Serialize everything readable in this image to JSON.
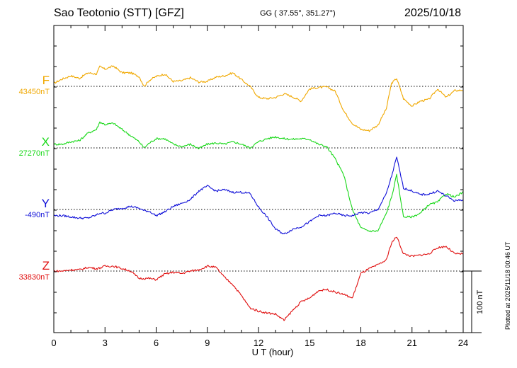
{
  "header": {
    "station": "Sao Teotonio (STT)  [GFZ]",
    "coords": "GG ( 37.55°, 351.27°)",
    "date": "2025/10/18"
  },
  "plotted_note": "Plotted at 2025/11/18 00:46 UT",
  "scale_label": "100 nT",
  "chart_data": {
    "type": "line",
    "xlabel": "U T (hour)",
    "xlim": [
      0,
      24
    ],
    "xticks": [
      0,
      3,
      6,
      9,
      12,
      15,
      18,
      21,
      24
    ],
    "nt_per_division": 100,
    "colors": {
      "F": "#f0a800",
      "X": "#18d818",
      "Y": "#1010d8",
      "Z": "#e01010"
    },
    "series": [
      {
        "name": "F",
        "baseline_label": "43450nT",
        "color": "#f0a800",
        "baseline": 43450,
        "x": [
          0,
          0.5,
          1,
          1.5,
          2,
          2.5,
          2.7,
          3,
          3.5,
          4,
          4.5,
          5,
          5.3,
          5.6,
          6,
          6.5,
          7,
          7.5,
          8,
          8.5,
          9,
          9.5,
          10,
          10.5,
          11,
          11.5,
          12,
          12.5,
          13,
          13.5,
          14,
          14.5,
          15,
          15.5,
          16,
          16.5,
          17,
          17.5,
          18,
          18.5,
          19,
          19.5,
          19.8,
          20.1,
          20.5,
          21,
          21.5,
          22,
          22.5,
          23,
          23.5,
          24
        ],
        "y": [
          43455,
          43462,
          43467,
          43463,
          43472,
          43470,
          43482,
          43478,
          43483,
          43472,
          43472,
          43466,
          43450,
          43460,
          43466,
          43470,
          43458,
          43459,
          43464,
          43457,
          43458,
          43465,
          43467,
          43472,
          43461,
          43450,
          43432,
          43430,
          43432,
          43438,
          43433,
          43426,
          43446,
          43448,
          43449,
          43442,
          43410,
          43390,
          43380,
          43378,
          43387,
          43414,
          43455,
          43463,
          43430,
          43418,
          43426,
          43429,
          43446,
          43432,
          43443,
          43444
        ]
      },
      {
        "name": "X",
        "baseline_label": "27270nT",
        "color": "#18d818",
        "baseline": 27270,
        "x": [
          0,
          0.5,
          1,
          1.5,
          2,
          2.5,
          2.7,
          3,
          3.5,
          4,
          4.5,
          5,
          5.3,
          5.6,
          6,
          6.5,
          7,
          7.5,
          8,
          8.5,
          9,
          9.5,
          10,
          10.5,
          11,
          11.5,
          12,
          12.5,
          13,
          13.5,
          14,
          14.5,
          15,
          15.5,
          16,
          16.5,
          17,
          17.5,
          18,
          18.5,
          19,
          19.5,
          19.8,
          20.1,
          20.5,
          21,
          21.5,
          22,
          22.5,
          23,
          23.5,
          24
        ],
        "y": [
          27276,
          27276,
          27280,
          27282,
          27294,
          27300,
          27312,
          27308,
          27310,
          27300,
          27290,
          27280,
          27270,
          27278,
          27285,
          27285,
          27276,
          27272,
          27276,
          27269,
          27276,
          27278,
          27276,
          27280,
          27276,
          27270,
          27280,
          27285,
          27288,
          27285,
          27284,
          27285,
          27284,
          27276,
          27272,
          27252,
          27226,
          27170,
          27140,
          27135,
          27135,
          27164,
          27190,
          27226,
          27158,
          27158,
          27164,
          27178,
          27182,
          27196,
          27190,
          27198
        ]
      },
      {
        "name": "Y",
        "baseline_label": "-490nT",
        "color": "#1010d8",
        "baseline": -490,
        "x": [
          0,
          0.5,
          1,
          1.5,
          2,
          2.5,
          2.7,
          3,
          3.5,
          4,
          4.5,
          5,
          5.3,
          5.6,
          6,
          6.5,
          7,
          7.5,
          8,
          8.5,
          9,
          9.5,
          10,
          10.5,
          11,
          11.5,
          12,
          12.5,
          13,
          13.5,
          14,
          14.5,
          15,
          15.5,
          16,
          16.5,
          17,
          17.5,
          18,
          18.5,
          19,
          19.5,
          19.8,
          20.1,
          20.5,
          21,
          21.5,
          22,
          22.5,
          23,
          23.5,
          24
        ],
        "y": [
          -500,
          -500,
          -502,
          -504,
          -504,
          -499,
          -496,
          -496,
          -490,
          -488,
          -485,
          -488,
          -492,
          -493,
          -500,
          -494,
          -485,
          -480,
          -474,
          -460,
          -452,
          -460,
          -458,
          -462,
          -462,
          -464,
          -486,
          -502,
          -522,
          -530,
          -522,
          -518,
          -510,
          -500,
          -500,
          -496,
          -500,
          -500,
          -495,
          -496,
          -490,
          -464,
          -436,
          -405,
          -455,
          -460,
          -466,
          -465,
          -460,
          -468,
          -476,
          -474
        ]
      },
      {
        "name": "Z",
        "baseline_label": "33830nT",
        "color": "#e01010",
        "baseline": 33830,
        "x": [
          0,
          0.5,
          1,
          1.5,
          2,
          2.5,
          2.7,
          3,
          3.5,
          4,
          4.5,
          5,
          5.3,
          5.6,
          6,
          6.5,
          7,
          7.5,
          8,
          8.5,
          9,
          9.5,
          10,
          10.5,
          11,
          11.5,
          12,
          12.5,
          13,
          13.5,
          14,
          14.5,
          15,
          15.5,
          16,
          16.5,
          17,
          17.5,
          18,
          18.5,
          19,
          19.5,
          19.8,
          20.1,
          20.5,
          21,
          21.5,
          22,
          22.5,
          23,
          23.5,
          24
        ],
        "y": [
          33830,
          33830,
          33832,
          33832,
          33836,
          33834,
          33835,
          33838,
          33838,
          33834,
          33830,
          33818,
          33818,
          33818,
          33816,
          33825,
          33828,
          33826,
          33830,
          33832,
          33838,
          33836,
          33820,
          33808,
          33790,
          33770,
          33765,
          33762,
          33760,
          33750,
          33766,
          33780,
          33786,
          33798,
          33800,
          33796,
          33792,
          33786,
          33826,
          33834,
          33840,
          33848,
          33876,
          33886,
          33858,
          33854,
          33856,
          33858,
          33868,
          33870,
          33858,
          33858
        ]
      }
    ]
  }
}
